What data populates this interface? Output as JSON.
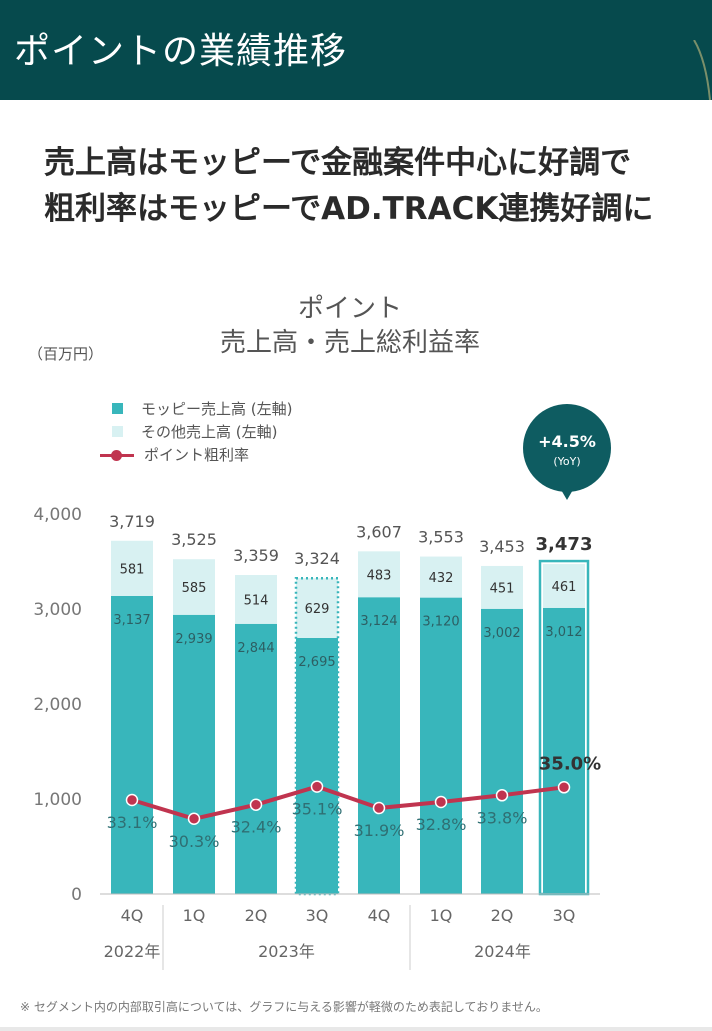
{
  "header": {
    "title": "ポイントの業績推移"
  },
  "headline": {
    "line1": "売上高はモッピーで金融案件中心に好調で",
    "line2": "粗利率はモッピーでAD.TRACK連携好調に"
  },
  "chart_title": {
    "line1": "ポイント",
    "line2": "売上高・売上総利益率"
  },
  "unit_label": "（百万円）",
  "legend": {
    "moppy": "モッピー売上高 (左軸)",
    "other": "その他売上高 (左軸)",
    "margin": "ポイント粗利率"
  },
  "yoy": {
    "value": "+4.5%",
    "label": "(YoY)"
  },
  "chart_data": {
    "type": "bar",
    "stacked": true,
    "categories": [
      "4Q",
      "1Q",
      "2Q",
      "3Q",
      "4Q",
      "1Q",
      "2Q",
      "3Q"
    ],
    "year_groups": [
      {
        "label": "2022年",
        "start": 0,
        "end": 0
      },
      {
        "label": "2023年",
        "start": 1,
        "end": 4
      },
      {
        "label": "2024年",
        "start": 5,
        "end": 7
      }
    ],
    "series": [
      {
        "name": "モッピー売上高 (左軸)",
        "values": [
          3137,
          2939,
          2844,
          2695,
          3124,
          3120,
          3002,
          3012
        ],
        "labels": [
          "3,137",
          "2,939",
          "2,844",
          "2,695",
          "3,124",
          "3,120",
          "3,002",
          "3,012"
        ],
        "color": "#38b6bb"
      },
      {
        "name": "その他売上高 (左軸)",
        "values": [
          581,
          585,
          514,
          629,
          483,
          432,
          451,
          461
        ],
        "labels": [
          "581",
          "585",
          "514",
          "629",
          "483",
          "432",
          "451",
          "461"
        ],
        "color": "#d8f1f2"
      }
    ],
    "totals": [
      3719,
      3525,
      3359,
      3324,
      3607,
      3553,
      3453,
      3473
    ],
    "total_labels": [
      "3,719",
      "3,525",
      "3,359",
      "3,324",
      "3,607",
      "3,553",
      "3,453",
      "3,473"
    ],
    "line_series": {
      "name": "ポイント粗利率",
      "values": [
        33.1,
        30.3,
        32.4,
        35.1,
        31.9,
        32.8,
        33.8,
        35.0
      ],
      "labels": [
        "33.1%",
        "30.3%",
        "32.4%",
        "35.1%",
        "31.9%",
        "32.8%",
        "33.8%",
        "35.0%"
      ],
      "color": "#c0344f"
    },
    "ylim": [
      0,
      4000
    ],
    "yticks": [
      0,
      1000,
      2000,
      3000,
      4000
    ],
    "ytick_labels": [
      "0",
      "1,000",
      "2,000",
      "3,000",
      "4,000"
    ],
    "highlight_dotted_index": 3,
    "highlight_solid_index": 7
  },
  "footnote": "※ セグメント内の内部取引高については、グラフに与える影響が軽微のため表記しておりません。"
}
